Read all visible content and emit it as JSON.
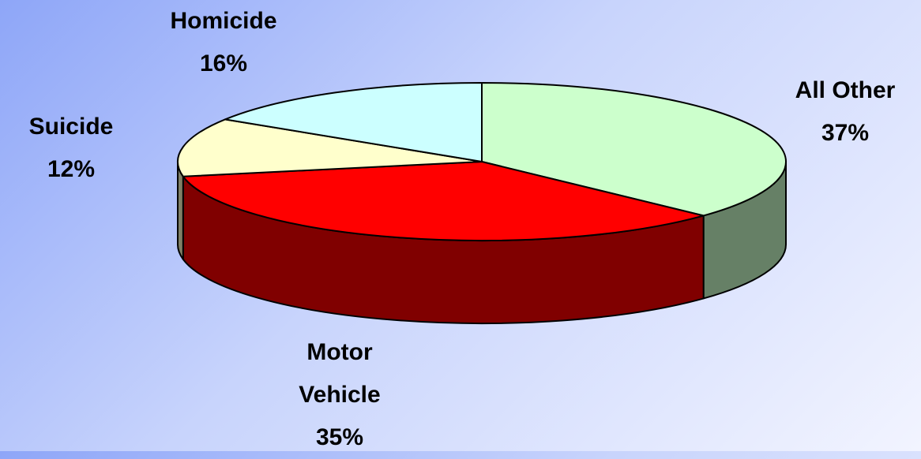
{
  "chart_data": {
    "type": "pie",
    "categories": [
      "All Other",
      "Motor Vehicle",
      "Suicide",
      "Homicide"
    ],
    "values": [
      37,
      35,
      12,
      16
    ],
    "value_labels": [
      "37%",
      "35%",
      "12%",
      "16%"
    ],
    "colors": [
      "#ccffcc",
      "#ff0000",
      "#ffffcc",
      "#ccffff"
    ]
  }
}
